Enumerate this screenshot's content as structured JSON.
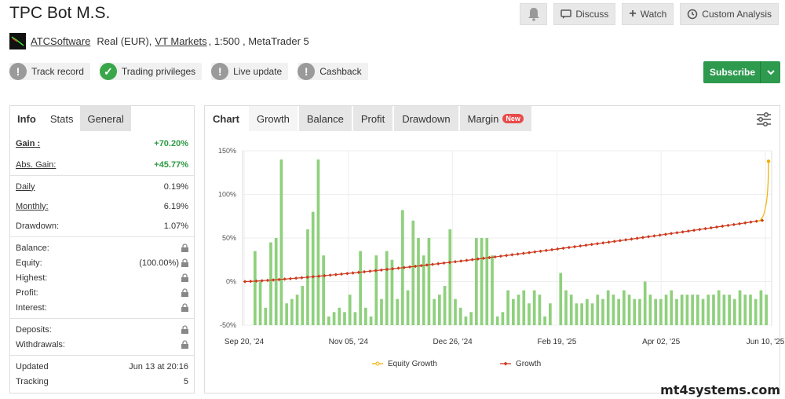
{
  "title": "TPC Bot M.S.",
  "account": {
    "developer": "ATCSoftware",
    "type": "Real (EUR),",
    "broker": "VT Markets",
    "leverage": ", 1:500 , MetaTrader 5"
  },
  "buttons": {
    "discuss": "Discuss",
    "watch": "Watch",
    "custom_analysis": "Custom Analysis",
    "subscribe": "Subscribe"
  },
  "badges": [
    {
      "label": "Track record",
      "status": "grey"
    },
    {
      "label": "Trading privileges",
      "status": "green"
    },
    {
      "label": "Live update",
      "status": "grey"
    },
    {
      "label": "Cashback",
      "status": "grey"
    }
  ],
  "left_tabs": [
    "Info",
    "Stats",
    "General"
  ],
  "stats": {
    "gain_k": "Gain :",
    "gain_v": "+70.20%",
    "abs_k": "Abs. Gain:",
    "abs_v": "+45.77%",
    "daily_k": "Daily",
    "daily_v": "0.19%",
    "monthly_k": "Monthly:",
    "monthly_v": "6.19%",
    "dd_k": "Drawdown:",
    "dd_v": "1.07%",
    "balance_k": "Balance:",
    "equity_k": "Equity:",
    "equity_v": "(100.00%)",
    "highest_k": "Highest:",
    "profit_k": "Profit:",
    "interest_k": "Interest:",
    "deposits_k": "Deposits:",
    "withdrawals_k": "Withdrawals:",
    "updated_k": "Updated",
    "updated_v": "Jun 13 at 20:16",
    "tracking_k": "Tracking",
    "tracking_v": "5"
  },
  "chart_tabs": [
    "Chart",
    "Growth",
    "Balance",
    "Profit",
    "Drawdown",
    "Margin"
  ],
  "new_badge": "New",
  "watermark": "mt4systems.com",
  "colors": {
    "growth": "#cc3a1e",
    "equity": "#f0b000",
    "bars": "#8fd07d",
    "accent": "#2d9a4e"
  },
  "chart_data": {
    "type": "line",
    "xlabels": [
      "Sep 20, '24",
      "Nov 05, '24",
      "Dec 26, '24",
      "Feb 19, '25",
      "Apr 02, '25",
      "Jun 10, '25"
    ],
    "yticks": [
      "150%",
      "100%",
      "50%",
      "0%",
      "-50%"
    ],
    "ylim": [
      -50,
      150
    ],
    "legend": [
      "Equity Growth",
      "Growth"
    ],
    "legend_position": "bottom",
    "grid": true,
    "growth_end": 70.2,
    "equity_end": 138,
    "bars": [
      35,
      0,
      -30,
      45,
      50,
      140,
      -25,
      -20,
      -15,
      -5,
      60,
      80,
      140,
      30,
      -40,
      -35,
      -30,
      -35,
      -15,
      -35,
      35,
      -30,
      -40,
      30,
      -20,
      35,
      25,
      -20,
      82,
      -10,
      70,
      50,
      30,
      50,
      -20,
      -15,
      -5,
      60,
      -20,
      -30,
      -40,
      -35,
      50,
      50,
      50,
      30,
      -40,
      -35,
      -10,
      -20,
      -15,
      -10,
      -25,
      -10,
      -15,
      -40,
      -25,
      -50,
      10,
      -10,
      -15,
      -25,
      -25,
      -20,
      -25,
      -15,
      -20,
      -10,
      -15,
      -20,
      -10,
      -15,
      -20,
      -20,
      0,
      -15,
      -20,
      -20,
      -15,
      -10,
      -20,
      -15,
      -15,
      -15,
      -15,
      -20,
      -15,
      -15,
      -10,
      -15,
      -15,
      -20,
      -10,
      -15,
      -15,
      -20,
      -10,
      -15
    ]
  }
}
